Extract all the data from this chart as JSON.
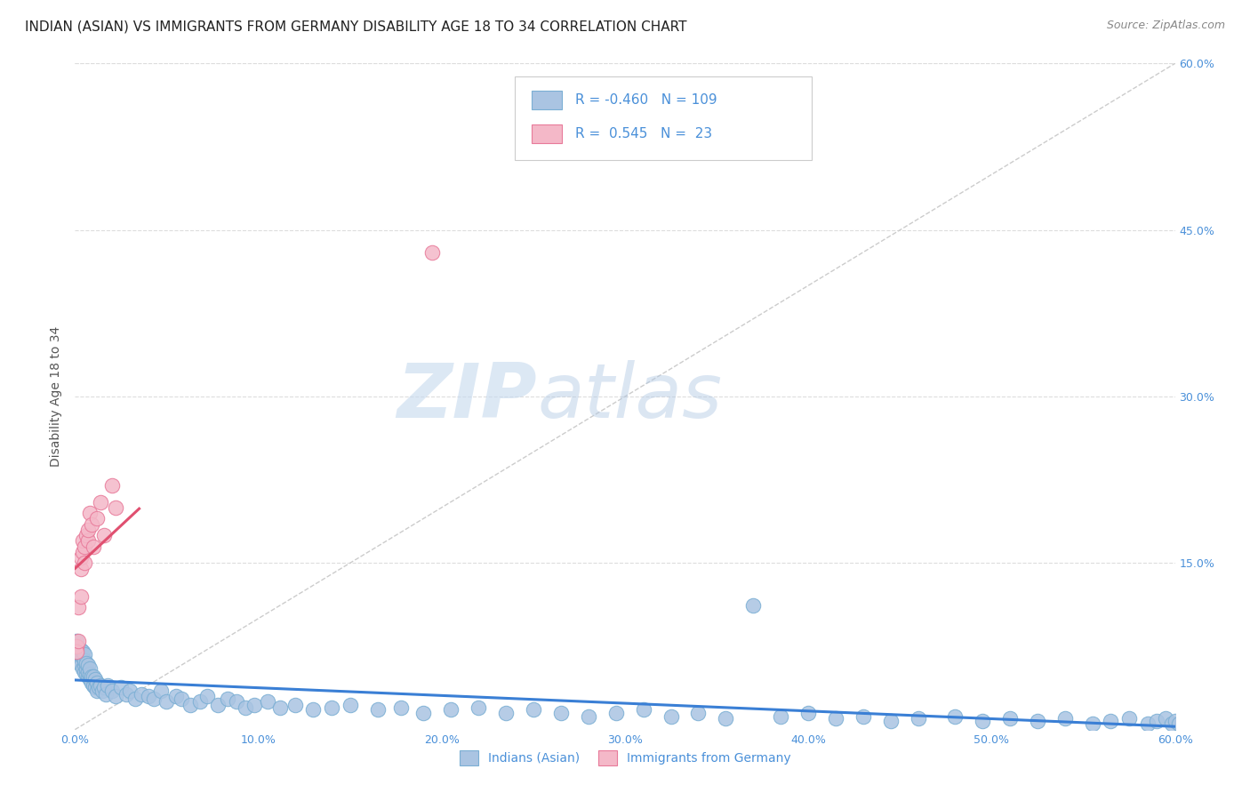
{
  "title": "INDIAN (ASIAN) VS IMMIGRANTS FROM GERMANY DISABILITY AGE 18 TO 34 CORRELATION CHART",
  "source": "Source: ZipAtlas.com",
  "ylabel": "Disability Age 18 to 34",
  "xlim": [
    0.0,
    0.6
  ],
  "ylim": [
    0.0,
    0.6
  ],
  "xticks": [
    0.0,
    0.1,
    0.2,
    0.3,
    0.4,
    0.5,
    0.6
  ],
  "xticklabels": [
    "0.0%",
    "10.0%",
    "20.0%",
    "30.0%",
    "40.0%",
    "50.0%",
    "60.0%"
  ],
  "yticks_right": [
    0.15,
    0.3,
    0.45,
    0.6
  ],
  "yticklabels_right": [
    "15.0%",
    "30.0%",
    "45.0%",
    "60.0%"
  ],
  "blue_color": "#aac4e2",
  "blue_edge": "#7bafd4",
  "pink_color": "#f4b8c8",
  "pink_edge": "#e87a9a",
  "blue_line_color": "#3a7fd5",
  "pink_line_color": "#e05070",
  "diag_color": "#cccccc",
  "label1": "Indians (Asian)",
  "label2": "Immigrants from Germany",
  "watermark_zip": "ZIP",
  "watermark_atlas": "atlas",
  "title_fontsize": 11,
  "axis_color": "#4a90d9",
  "background_color": "#ffffff",
  "grid_color": "#dddddd",
  "blue_points_x": [
    0.001,
    0.001,
    0.001,
    0.002,
    0.002,
    0.003,
    0.003,
    0.003,
    0.003,
    0.004,
    0.004,
    0.004,
    0.005,
    0.005,
    0.005,
    0.005,
    0.006,
    0.006,
    0.006,
    0.007,
    0.007,
    0.007,
    0.008,
    0.008,
    0.008,
    0.009,
    0.009,
    0.01,
    0.01,
    0.011,
    0.011,
    0.012,
    0.012,
    0.013,
    0.014,
    0.015,
    0.016,
    0.017,
    0.018,
    0.02,
    0.022,
    0.025,
    0.028,
    0.03,
    0.033,
    0.036,
    0.04,
    0.043,
    0.047,
    0.05,
    0.055,
    0.058,
    0.063,
    0.068,
    0.072,
    0.078,
    0.083,
    0.088,
    0.093,
    0.098,
    0.105,
    0.112,
    0.12,
    0.13,
    0.14,
    0.15,
    0.165,
    0.178,
    0.19,
    0.205,
    0.22,
    0.235,
    0.25,
    0.265,
    0.28,
    0.295,
    0.31,
    0.325,
    0.34,
    0.355,
    0.37,
    0.385,
    0.4,
    0.415,
    0.43,
    0.445,
    0.46,
    0.48,
    0.495,
    0.51,
    0.525,
    0.54,
    0.555,
    0.565,
    0.575,
    0.585,
    0.59,
    0.595,
    0.598,
    0.6,
    0.602,
    0.605,
    0.608,
    0.61,
    0.612,
    0.615,
    0.618,
    0.62,
    0.622
  ],
  "blue_points_y": [
    0.08,
    0.075,
    0.072,
    0.065,
    0.07,
    0.06,
    0.068,
    0.058,
    0.072,
    0.055,
    0.065,
    0.07,
    0.052,
    0.058,
    0.062,
    0.068,
    0.05,
    0.055,
    0.06,
    0.048,
    0.052,
    0.058,
    0.045,
    0.05,
    0.055,
    0.042,
    0.048,
    0.04,
    0.048,
    0.038,
    0.045,
    0.035,
    0.042,
    0.038,
    0.04,
    0.035,
    0.038,
    0.032,
    0.04,
    0.035,
    0.03,
    0.038,
    0.032,
    0.035,
    0.028,
    0.032,
    0.03,
    0.028,
    0.035,
    0.025,
    0.03,
    0.028,
    0.022,
    0.025,
    0.03,
    0.022,
    0.028,
    0.025,
    0.02,
    0.022,
    0.025,
    0.02,
    0.022,
    0.018,
    0.02,
    0.022,
    0.018,
    0.02,
    0.015,
    0.018,
    0.02,
    0.015,
    0.018,
    0.015,
    0.012,
    0.015,
    0.018,
    0.012,
    0.015,
    0.01,
    0.112,
    0.012,
    0.015,
    0.01,
    0.012,
    0.008,
    0.01,
    0.012,
    0.008,
    0.01,
    0.008,
    0.01,
    0.005,
    0.008,
    0.01,
    0.005,
    0.008,
    0.01,
    0.005,
    0.008,
    0.005,
    0.008,
    0.005,
    0.003,
    0.008,
    0.005,
    0.003,
    0.008,
    0.005
  ],
  "pink_points_x": [
    0.001,
    0.001,
    0.002,
    0.002,
    0.003,
    0.003,
    0.003,
    0.004,
    0.004,
    0.005,
    0.005,
    0.006,
    0.007,
    0.007,
    0.008,
    0.009,
    0.01,
    0.012,
    0.014,
    0.016,
    0.02,
    0.022,
    0.195
  ],
  "pink_points_y": [
    0.075,
    0.07,
    0.08,
    0.11,
    0.12,
    0.145,
    0.155,
    0.16,
    0.17,
    0.15,
    0.165,
    0.175,
    0.17,
    0.18,
    0.195,
    0.185,
    0.165,
    0.19,
    0.205,
    0.175,
    0.22,
    0.2,
    0.43
  ],
  "pink_line_x_start": 0.0,
  "pink_line_x_end": 0.025,
  "blue_line_x_start": 0.0,
  "blue_line_x_end": 0.6
}
